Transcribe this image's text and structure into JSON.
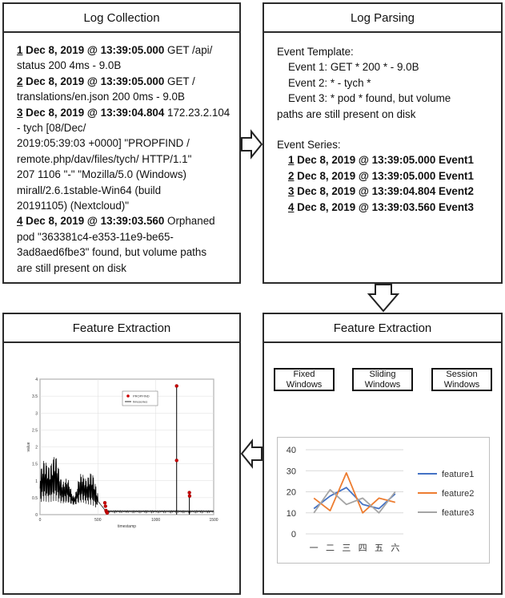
{
  "panels": {
    "log_collection": {
      "title": "Log Collection",
      "entries": [
        {
          "num": "1",
          "timestamp": "Dec 8, 2019 @ 13:39:05.000",
          "text": "GET /api/\nstatus 200 4ms - 9.0B"
        },
        {
          "num": "2",
          "timestamp": "Dec 8, 2019 @ 13:39:05.000",
          "text": "GET /\ntranslations/en.json 200 0ms - 9.0B"
        },
        {
          "num": "3",
          "timestamp": "Dec 8, 2019 @ 13:39:04.804",
          "text": "172.23.2.104 - tych [08/Dec/\n2019:05:39:03 +0000] \"PROPFIND /\nremote.php/dav/files/tych/ HTTP/1.1\"\n207 1106 \"-\" \"Mozilla/5.0 (Windows)\nmirall/2.6.1stable-Win64 (build\n20191105) (Nextcloud)\""
        },
        {
          "num": "4",
          "timestamp": "Dec 8, 2019 @ 13:39:03.560",
          "text": "Orphaned\npod \"363381c4-e353-11e9-be65-\n3ad8aed6fbe3\" found, but volume paths\nare still present on disk"
        }
      ]
    },
    "log_parsing": {
      "title": "Log Parsing",
      "template_heading": "Event Template:",
      "templates": [
        "Event 1: GET * 200 * - 9.0B",
        "Event 2: * - tych *",
        "Event 3: * pod * found, but volume"
      ],
      "template_wrap": "paths are still present on disk",
      "series_heading": "Event Series:",
      "series": [
        {
          "num": "1",
          "text": "Dec 8, 2019 @ 13:39:05.000 Event1"
        },
        {
          "num": "2",
          "text": "Dec 8, 2019 @ 13:39:05.000 Event1"
        },
        {
          "num": "3",
          "text": "Dec 8, 2019 @ 13:39:04.804 Event2"
        },
        {
          "num": "4",
          "text": "Dec 8, 2019 @ 13:39:03.560 Event3"
        }
      ]
    },
    "feature_extraction_left": {
      "title": "Feature Extraction"
    },
    "feature_extraction_right": {
      "title": "Feature Extraction",
      "windows": [
        {
          "line1": "Fixed",
          "line2": "Windows"
        },
        {
          "line1": "Sliding",
          "line2": "Windows"
        },
        {
          "line1": "Session",
          "line2": "Windows"
        }
      ]
    }
  },
  "arrow_color": "#222222",
  "chart_data": [
    {
      "type": "line",
      "xlabel": "timestamp",
      "ylabel": "value",
      "xlim": [
        0,
        1500
      ],
      "ylim": [
        0,
        4
      ],
      "xticks": [
        "0",
        "500",
        "1000",
        "1500"
      ],
      "yticks": [
        "0",
        "0.5",
        "1",
        "1.5",
        "2",
        "2.5",
        "3",
        "3.5",
        "4"
      ],
      "legend": [
        "PROPFIND",
        "timeseries"
      ],
      "series_colors": {
        "line": "#000000",
        "marker": "#cc0000"
      },
      "markers": [
        {
          "x": 560,
          "y": 0.35
        },
        {
          "x": 565,
          "y": 0.25
        },
        {
          "x": 570,
          "y": 0.12
        },
        {
          "x": 575,
          "y": 0.08
        },
        {
          "x": 580,
          "y": 0.05
        },
        {
          "x": 1180,
          "y": 3.8
        },
        {
          "x": 1180,
          "y": 1.6
        },
        {
          "x": 1290,
          "y": 0.65
        },
        {
          "x": 1292,
          "y": 0.55
        }
      ]
    },
    {
      "type": "line",
      "categories": [
        "一",
        "二",
        "三",
        "四",
        "五",
        "六"
      ],
      "ylim": [
        0,
        40
      ],
      "yticks": [
        "0",
        "10",
        "20",
        "30",
        "40"
      ],
      "legend_position": "right",
      "series": [
        {
          "name": "feature1",
          "color": "#4472C4",
          "values": [
            12,
            18,
            22,
            14,
            12,
            19
          ]
        },
        {
          "name": "feature2",
          "color": "#ED7D31",
          "values": [
            17,
            11,
            29,
            10,
            17,
            15
          ]
        },
        {
          "name": "feature3",
          "color": "#A5A5A5",
          "values": [
            10,
            21,
            14,
            17,
            10,
            20
          ]
        }
      ]
    }
  ]
}
